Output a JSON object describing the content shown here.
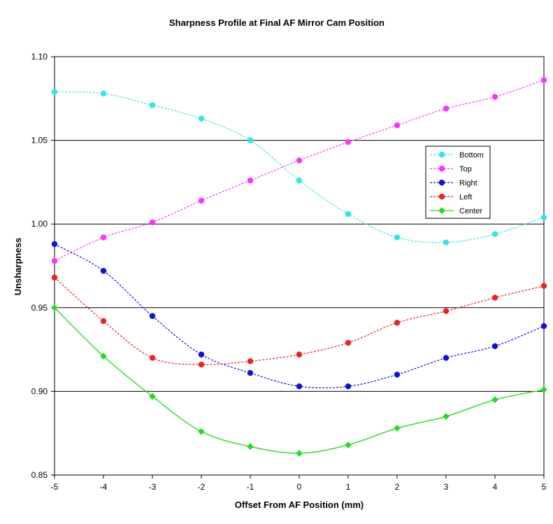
{
  "chart_data": {
    "type": "line",
    "title": "Sharpness Profile at Final AF Mirror Cam Position",
    "xlabel": "Offset From AF Position (mm)",
    "ylabel": "Unsharpness",
    "x": [
      -5,
      -4,
      -3,
      -2,
      -1,
      0,
      1,
      2,
      3,
      4,
      5
    ],
    "x_tick_labels": [
      "-5",
      "-4",
      "-3",
      "-2",
      "-1",
      "0",
      "1",
      "2",
      "3",
      "4",
      "5"
    ],
    "xlim": [
      -5,
      5
    ],
    "ylim": [
      0.85,
      1.1
    ],
    "y_ticks": [
      0.85,
      0.9,
      0.95,
      1.0,
      1.05,
      1.1
    ],
    "y_tick_labels": [
      "0.85",
      "0.90",
      "0.95",
      "1.00",
      "1.05",
      "1.10"
    ],
    "grid": "horizontal major gridlines",
    "legend_position": "right, inside plot area",
    "series": [
      {
        "name": "Bottom",
        "color": "#33e6e6",
        "marker": "circle",
        "dashed": true,
        "values": [
          1.079,
          1.078,
          1.071,
          1.063,
          1.05,
          1.026,
          1.006,
          0.992,
          0.989,
          0.994,
          1.004
        ]
      },
      {
        "name": "Top",
        "color": "#ff33ff",
        "marker": "circle",
        "dashed": true,
        "values": [
          0.978,
          0.992,
          1.001,
          1.014,
          1.026,
          1.038,
          1.049,
          1.059,
          1.069,
          1.076,
          1.086
        ]
      },
      {
        "name": "Right",
        "color": "#1111dd",
        "marker": "circle",
        "dashed": true,
        "values": [
          0.988,
          0.972,
          0.945,
          0.922,
          0.911,
          0.903,
          0.903,
          0.91,
          0.92,
          0.927,
          0.939
        ]
      },
      {
        "name": "Left",
        "color": "#ee2222",
        "marker": "circle",
        "dashed": true,
        "values": [
          0.968,
          0.942,
          0.92,
          0.916,
          0.918,
          0.922,
          0.929,
          0.941,
          0.948,
          0.956,
          0.963
        ]
      },
      {
        "name": "Center",
        "color": "#22dd22",
        "marker": "diamond",
        "dashed": false,
        "values": [
          0.95,
          0.921,
          0.897,
          0.876,
          0.867,
          0.863,
          0.868,
          0.878,
          0.885,
          0.895,
          0.901
        ]
      }
    ]
  }
}
